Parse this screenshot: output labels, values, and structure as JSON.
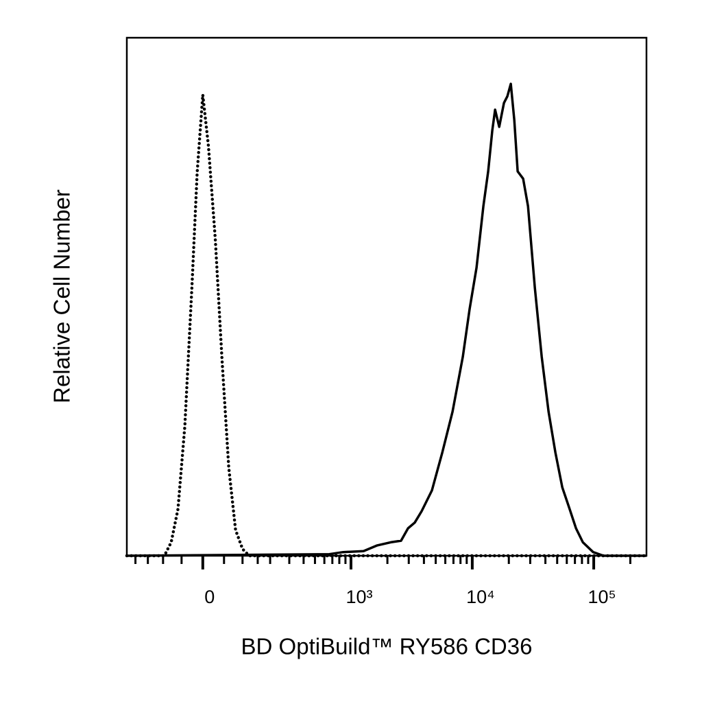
{
  "chart_data": {
    "type": "line",
    "x_label": "BD OptiBuild™ RY586 CD36",
    "y_label": "Relative Cell Number",
    "x_scale": "biexponential",
    "xlim": [
      -241,
      271700
    ],
    "ylim": [
      0,
      100
    ],
    "xticks": [
      0,
      {
        "value": 1000,
        "label": "10³"
      },
      {
        "value": 10000,
        "label": "10⁴"
      },
      {
        "value": 100000,
        "label": "10⁵"
      }
    ],
    "xminorticks": [
      -200,
      -150,
      -100,
      -50,
      50,
      100,
      150,
      200,
      300,
      400,
      500,
      600,
      700,
      800,
      900,
      2000,
      3000,
      4000,
      5000,
      6000,
      7000,
      8000,
      9000,
      20000,
      30000,
      40000,
      50000,
      60000,
      70000,
      80000,
      90000,
      200000
    ],
    "series": [
      {
        "color": "#000000",
        "dash": "dotted",
        "x": [
          -241,
          -96,
          -77,
          -59,
          -42,
          -25,
          -13,
          0,
          13,
          29,
          45,
          62,
          80,
          100,
          121,
          271700
        ],
        "values": [
          0,
          0,
          2.6,
          9,
          25,
          52,
          74,
          89,
          79,
          61,
          38,
          17,
          5,
          1.3,
          0,
          0
        ]
      },
      {
        "color": "#000000",
        "dash": "solid",
        "x": [
          -241,
          660,
          860,
          1270,
          1650,
          2130,
          2590,
          2960,
          3360,
          3830,
          4650,
          5660,
          6880,
          8360,
          9520,
          10840,
          12350,
          13520,
          14610,
          15410,
          16660,
          18230,
          19460,
          20770,
          22170,
          23640,
          26230,
          28760,
          32750,
          37300,
          42480,
          48380,
          55100,
          62740,
          71450,
          81370,
          98920,
          120200,
          271700
        ],
        "values": [
          0,
          0.3,
          0.7,
          0.9,
          2.0,
          2.6,
          2.9,
          5.3,
          6.4,
          8.6,
          12.6,
          19.9,
          27.8,
          38.4,
          47.7,
          55.6,
          67.5,
          74.2,
          82.1,
          86.1,
          82.8,
          87.4,
          88.7,
          91.1,
          84.1,
          74.2,
          72.8,
          67.5,
          51.7,
          38.4,
          27.8,
          19.9,
          13.2,
          9.3,
          5.3,
          2.6,
          0.7,
          0,
          0
        ]
      }
    ]
  }
}
